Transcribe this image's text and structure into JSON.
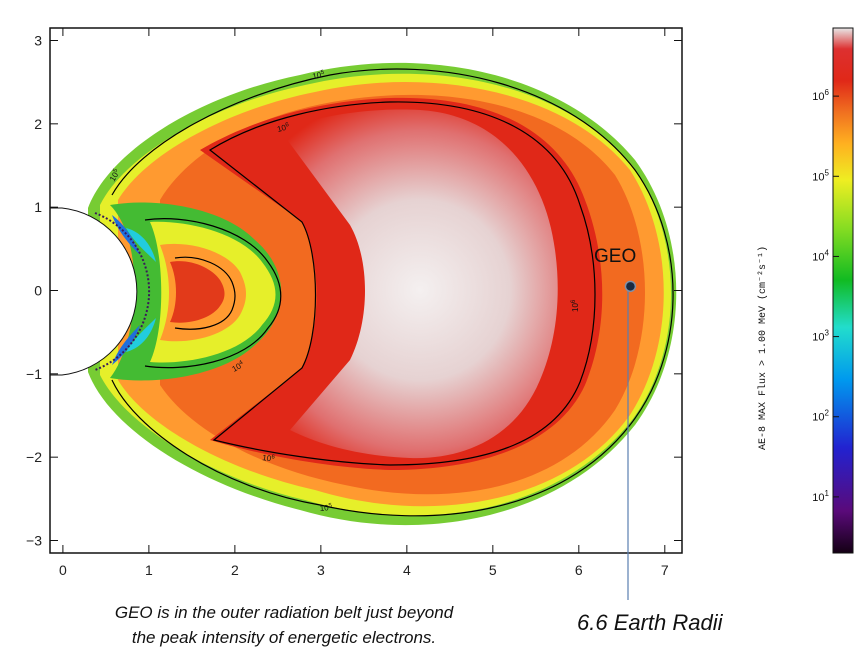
{
  "chart_data": {
    "type": "heatmap",
    "title": "",
    "x_ticks": [
      "0",
      "1",
      "2",
      "3",
      "4",
      "5",
      "6",
      "7"
    ],
    "y_ticks": [
      "3",
      "2",
      "1",
      "0",
      "−1",
      "−2",
      "−3"
    ],
    "xlim": [
      -0.15,
      7.2
    ],
    "ylim": [
      -3.15,
      3.15
    ],
    "colorbar": {
      "title": "AE-8 MAX Flux > 1.00 MeV (cm⁻²s⁻¹)",
      "ticks": [
        {
          "base": "10",
          "exp": "6",
          "value": 1000000
        },
        {
          "base": "10",
          "exp": "5",
          "value": 100000
        },
        {
          "base": "10",
          "exp": "4",
          "value": 10000
        },
        {
          "base": "10",
          "exp": "3",
          "value": 1000
        },
        {
          "base": "10",
          "exp": "2",
          "value": 100
        },
        {
          "base": "10",
          "exp": "1",
          "value": 10
        }
      ],
      "log_min": 0.3,
      "log_max": 6.85,
      "stops": [
        {
          "frac": 0.0,
          "color": "#140014"
        },
        {
          "frac": 0.08,
          "color": "#5a0a7a"
        },
        {
          "frac": 0.2,
          "color": "#2222d0"
        },
        {
          "frac": 0.33,
          "color": "#0099ee"
        },
        {
          "frac": 0.43,
          "color": "#22ddcc"
        },
        {
          "frac": 0.52,
          "color": "#11bb22"
        },
        {
          "frac": 0.62,
          "color": "#88dd22"
        },
        {
          "frac": 0.71,
          "color": "#eeee22"
        },
        {
          "frac": 0.78,
          "color": "#ffb020"
        },
        {
          "frac": 0.84,
          "color": "#f07020"
        },
        {
          "frac": 0.9,
          "color": "#e02818"
        },
        {
          "frac": 0.96,
          "color": "#dd3030"
        },
        {
          "frac": 1.0,
          "color": "#e8e8e8"
        }
      ]
    },
    "contour_labels": [
      {
        "base": "10",
        "exp": "5"
      },
      {
        "base": "10",
        "exp": "6"
      },
      {
        "base": "10",
        "exp": "5"
      },
      {
        "base": "10",
        "exp": "6"
      },
      {
        "base": "10",
        "exp": "4"
      },
      {
        "base": "10",
        "exp": "5"
      },
      {
        "base": "10",
        "exp": "6"
      }
    ],
    "geo_marker": {
      "label": "GEO",
      "x": 6.6,
      "y": 0.05
    },
    "colors": {
      "belt_outer": "#ff9a30",
      "belt_core": "#e02818",
      "belt_peak": "#ececec",
      "green_band": "#66cc33"
    }
  },
  "caption": {
    "line1": "GEO is in the outer radiation  belt just beyond",
    "line2": "the peak intensity of energetic electrons."
  },
  "annotation": {
    "radii": "6.6 Earth Radii"
  }
}
